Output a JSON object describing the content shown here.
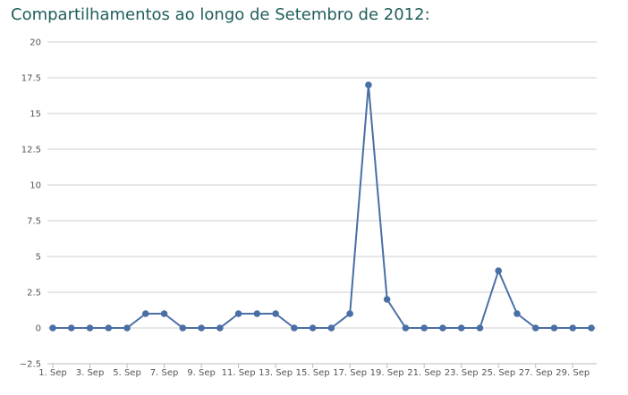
{
  "chart_data": {
    "type": "line",
    "title": "Compartilhamentos ao longo de Setembro de 2012:",
    "xlabel": "",
    "ylabel": "",
    "x": [
      "1. Sep",
      "2. Sep",
      "3. Sep",
      "4. Sep",
      "5. Sep",
      "6. Sep",
      "7. Sep",
      "8. Sep",
      "9. Sep",
      "10. Sep",
      "11. Sep",
      "12. Sep",
      "13. Sep",
      "14. Sep",
      "15. Sep",
      "16. Sep",
      "17. Sep",
      "18. Sep",
      "19. Sep",
      "20. Sep",
      "21. Sep",
      "22. Sep",
      "23. Sep",
      "24. Sep",
      "25. Sep",
      "26. Sep",
      "27. Sep",
      "28. Sep",
      "29. Sep",
      "30. Sep"
    ],
    "x_tick_labels": [
      "1. Sep",
      "3. Sep",
      "5. Sep",
      "7. Sep",
      "9. Sep",
      "11. Sep",
      "13. Sep",
      "15. Sep",
      "17. Sep",
      "19. Sep",
      "21. Sep",
      "23. Sep",
      "25. Sep",
      "27. Sep",
      "29. Sep"
    ],
    "series": [
      {
        "values": [
          0,
          0,
          0,
          0,
          0,
          1,
          1,
          0,
          0,
          0,
          1,
          1,
          1,
          0,
          0,
          0,
          1,
          17,
          2,
          0,
          0,
          0,
          0,
          0,
          4,
          1,
          0,
          0,
          0,
          0
        ],
        "color": "#4a6fa5"
      }
    ],
    "ylim": [
      -2.5,
      20
    ],
    "y_ticks": [
      "-2.5",
      "0",
      "2.5",
      "5",
      "7.5",
      "10",
      "12.5",
      "15",
      "17.5",
      "20"
    ],
    "grid": true,
    "legend": "none"
  }
}
